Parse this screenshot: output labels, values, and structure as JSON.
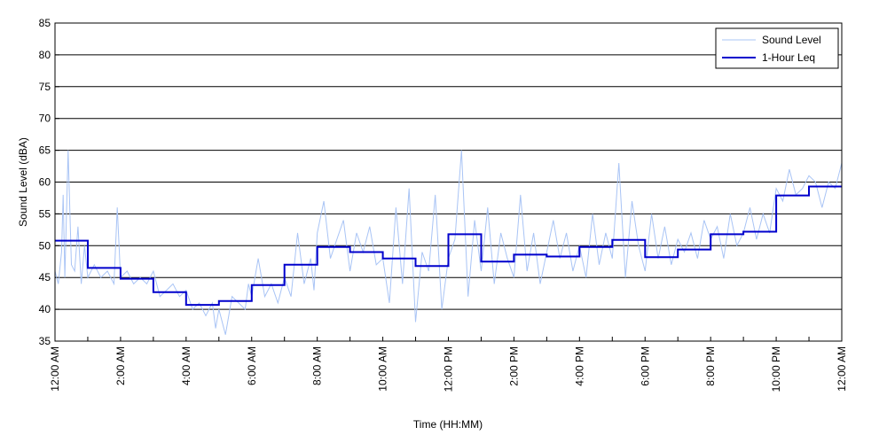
{
  "chart_data": {
    "type": "line",
    "title": "",
    "xlabel": "Time (HH:MM)",
    "ylabel": "Sound Level (dBA)",
    "xlim": [
      0,
      24
    ],
    "ylim": [
      35,
      85
    ],
    "y_ticks": [
      35,
      40,
      45,
      50,
      55,
      60,
      65,
      70,
      75,
      80,
      85
    ],
    "x_tick_hours": [
      0,
      2,
      4,
      6,
      8,
      10,
      12,
      14,
      16,
      18,
      20,
      22,
      24
    ],
    "x_tick_labels": [
      "12:00 AM",
      "2:00 AM",
      "4:00 AM",
      "6:00 AM",
      "8:00 AM",
      "10:00 AM",
      "12:00 PM",
      "2:00 PM",
      "4:00 PM",
      "6:00 PM",
      "8:00 PM",
      "10:00 PM",
      "12:00 AM"
    ],
    "grid": "horizontal",
    "legend_position": "top-right",
    "series": [
      {
        "name": "Sound Level",
        "style": "thin",
        "color": "#a9c4f5",
        "x": [
          0,
          0.1,
          0.2,
          0.25,
          0.3,
          0.4,
          0.5,
          0.6,
          0.7,
          0.8,
          0.9,
          1.0,
          1.2,
          1.4,
          1.6,
          1.8,
          1.9,
          2.0,
          2.2,
          2.4,
          2.6,
          2.8,
          3.0,
          3.2,
          3.4,
          3.6,
          3.8,
          4.0,
          4.2,
          4.4,
          4.6,
          4.8,
          4.9,
          5.0,
          5.2,
          5.4,
          5.6,
          5.8,
          5.9,
          6.0,
          6.2,
          6.4,
          6.6,
          6.8,
          7.0,
          7.2,
          7.4,
          7.6,
          7.8,
          7.9,
          8.0,
          8.2,
          8.4,
          8.6,
          8.8,
          9.0,
          9.2,
          9.4,
          9.6,
          9.8,
          10.0,
          10.2,
          10.4,
          10.6,
          10.8,
          11.0,
          11.2,
          11.4,
          11.6,
          11.8,
          12.0,
          12.2,
          12.4,
          12.6,
          12.8,
          13.0,
          13.2,
          13.4,
          13.6,
          13.8,
          14.0,
          14.2,
          14.4,
          14.6,
          14.8,
          15.0,
          15.2,
          15.4,
          15.6,
          15.8,
          16.0,
          16.2,
          16.4,
          16.6,
          16.8,
          17.0,
          17.2,
          17.4,
          17.6,
          17.8,
          18.0,
          18.2,
          18.4,
          18.6,
          18.8,
          19.0,
          19.2,
          19.4,
          19.6,
          19.8,
          20.0,
          20.2,
          20.4,
          20.6,
          20.8,
          21.0,
          21.2,
          21.4,
          21.6,
          21.8,
          22.0,
          22.2,
          22.4,
          22.6,
          22.8,
          23.0,
          23.2,
          23.4,
          23.6,
          23.8,
          24.0
        ],
        "y": [
          46,
          44,
          49,
          58,
          45,
          65,
          47,
          46,
          53,
          44,
          50,
          45,
          47,
          45,
          46,
          44,
          56,
          45,
          46,
          44,
          45,
          44,
          46,
          42,
          43,
          44,
          42,
          43,
          40,
          41,
          39,
          41,
          37,
          40,
          36,
          42,
          41,
          40,
          44,
          42,
          48,
          42,
          44,
          41,
          45,
          42,
          52,
          44,
          48,
          43,
          52,
          57,
          48,
          51,
          54,
          46,
          52,
          49,
          53,
          47,
          48,
          41,
          56,
          44,
          59,
          38,
          49,
          46,
          58,
          40,
          48,
          51,
          65,
          42,
          54,
          46,
          56,
          44,
          52,
          48,
          45,
          58,
          46,
          52,
          44,
          49,
          54,
          48,
          52,
          46,
          50,
          45,
          55,
          47,
          52,
          48,
          63,
          45,
          57,
          50,
          46,
          55,
          48,
          53,
          47,
          51,
          49,
          52,
          48,
          54,
          51,
          53,
          48,
          55,
          50,
          52,
          56,
          51,
          55,
          52,
          59,
          57,
          62,
          58,
          59,
          61,
          60,
          56,
          60,
          59,
          63
        ]
      },
      {
        "name": "1-Hour Leq",
        "style": "thick",
        "color": "#0000cc",
        "hour_starts": [
          0,
          1,
          2,
          3,
          4,
          5,
          6,
          7,
          8,
          9,
          10,
          11,
          12,
          13,
          14,
          15,
          16,
          17,
          18,
          19,
          20,
          21,
          22,
          23
        ],
        "values": [
          50.8,
          46.5,
          44.8,
          42.7,
          40.7,
          41.3,
          43.8,
          47.0,
          49.8,
          49.0,
          48.0,
          46.8,
          51.8,
          47.5,
          48.6,
          48.3,
          49.8,
          50.9,
          48.2,
          49.4,
          51.8,
          52.2,
          57.9,
          59.3
        ]
      }
    ]
  }
}
